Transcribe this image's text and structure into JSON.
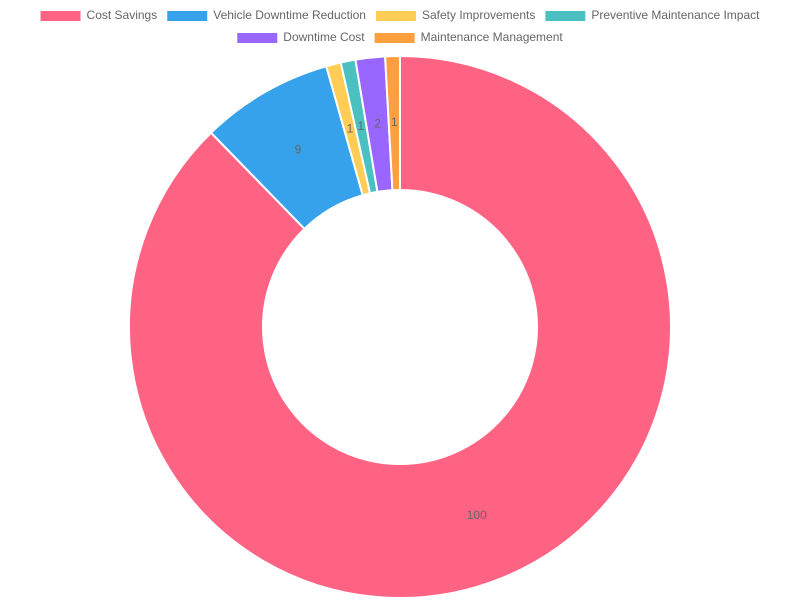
{
  "chart_data": {
    "type": "doughnut",
    "categories": [
      "Cost Savings",
      "Vehicle Downtime Reduction",
      "Safety Improvements",
      "Preventive Maintenance Impact",
      "Downtime Cost",
      "Maintenance Management"
    ],
    "values": [
      100,
      9,
      1,
      1,
      2,
      1
    ],
    "colors": [
      "#ff6384",
      "#36a2eb",
      "#ffcd56",
      "#4bc0c0",
      "#9966ff",
      "#ff9f40"
    ],
    "legend": "top"
  }
}
